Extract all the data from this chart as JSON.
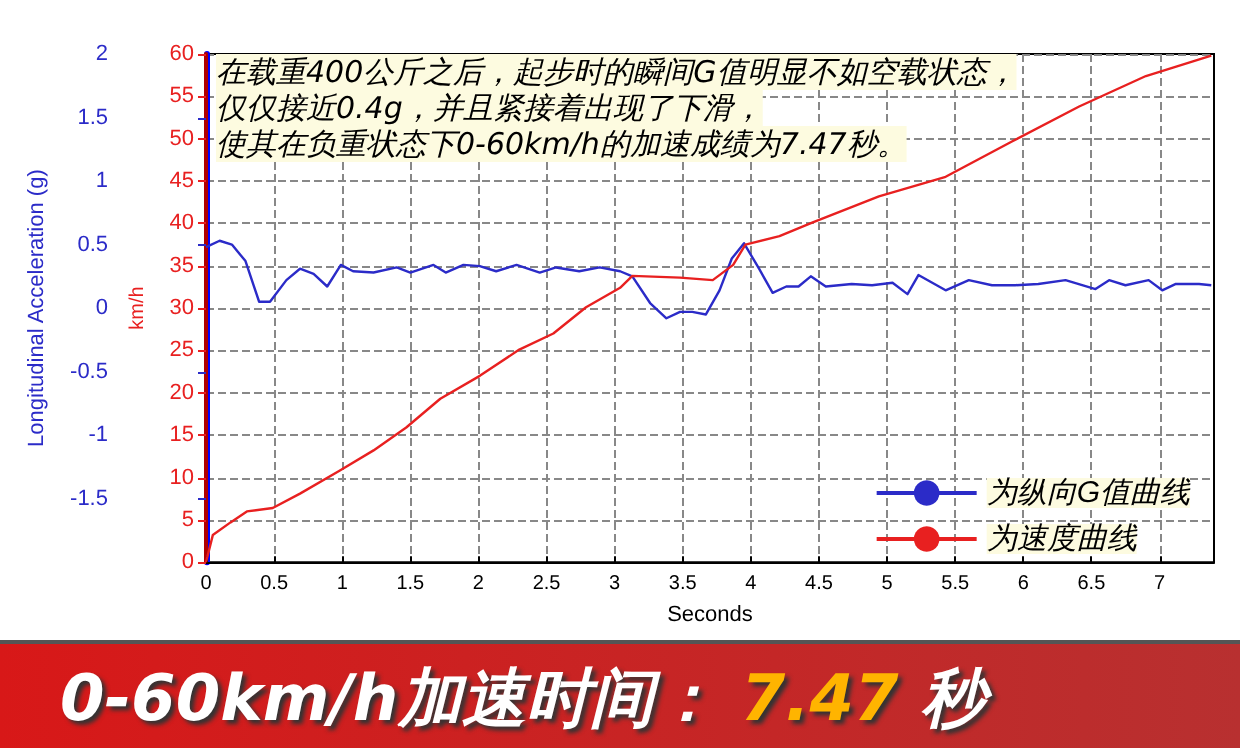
{
  "chart_data": {
    "type": "line",
    "title": "0-60km/h加速时间： 7.47 秒",
    "xlabel": "Seconds",
    "ylabel": "Longitudinal Acceleration (g)",
    "y2label": "km/h",
    "annotations": [
      "在载重400公斤之后，起步时的瞬间G值明显不如空载状态，",
      "仅仅接近0.4g，并且紧接着出现了下滑，",
      "使其在负重状态下0-60km/h的加速成绩为7.47秒。"
    ],
    "xlim": [
      0,
      7.4
    ],
    "xticks": [
      0,
      0.5,
      1,
      1.5,
      2,
      2.5,
      3,
      3.5,
      4,
      4.5,
      5,
      5.5,
      6,
      6.5,
      7
    ],
    "ylim": [
      -2,
      2
    ],
    "yticks": [
      -1.5,
      -1,
      -0.5,
      0,
      0.5,
      1,
      1.5,
      2
    ],
    "y2lim": [
      0,
      60
    ],
    "y2ticks": [
      0,
      5,
      10,
      15,
      20,
      25,
      30,
      35,
      40,
      45,
      50,
      55,
      60
    ],
    "grid": true,
    "legend": "bottom right",
    "marker": "none",
    "line_style": "solid",
    "series": [
      {
        "name": "为纵向G值曲线",
        "color": "#2b2bc8",
        "x": [
          0,
          0.1,
          0.19,
          0.29,
          0.39,
          0.47,
          0.59,
          0.69,
          0.79,
          0.89,
          0.99,
          1.08,
          1.23,
          1.4,
          1.5,
          1.67,
          1.76,
          1.89,
          2.01,
          2.13,
          2.28,
          2.45,
          2.57,
          2.74,
          2.89,
          3.04,
          3.13,
          3.26,
          3.38,
          3.48,
          3.57,
          3.67,
          3.77,
          3.86,
          3.95,
          4.06,
          4.16,
          4.26,
          4.35,
          4.44,
          4.55,
          4.74,
          4.89,
          5.04,
          5.15,
          5.23,
          5.43,
          5.6,
          5.77,
          5.94,
          6.11,
          6.31,
          6.53,
          6.63,
          6.75,
          6.92,
          7.02,
          7.12,
          7.29,
          7.38
        ],
        "values": [
          0.48,
          0.53,
          0.5,
          0.37,
          0.05,
          0.05,
          0.22,
          0.31,
          0.27,
          0.17,
          0.34,
          0.29,
          0.28,
          0.32,
          0.28,
          0.34,
          0.28,
          0.34,
          0.33,
          0.29,
          0.34,
          0.28,
          0.32,
          0.29,
          0.32,
          0.29,
          0.25,
          0.04,
          -0.08,
          -0.03,
          -0.03,
          -0.05,
          0.14,
          0.39,
          0.51,
          0.31,
          0.12,
          0.17,
          0.17,
          0.25,
          0.17,
          0.19,
          0.18,
          0.2,
          0.11,
          0.26,
          0.14,
          0.22,
          0.18,
          0.18,
          0.19,
          0.22,
          0.15,
          0.22,
          0.18,
          0.22,
          0.14,
          0.19,
          0.19,
          0.18
        ]
      },
      {
        "name": "为速度曲线",
        "color": "#e82020",
        "axis": "y2",
        "x": [
          0,
          0.05,
          0.18,
          0.3,
          0.49,
          0.69,
          0.98,
          1.23,
          1.47,
          1.72,
          2.01,
          2.3,
          2.55,
          2.79,
          3.04,
          3.13,
          3.48,
          3.72,
          3.87,
          3.96,
          4.21,
          4.45,
          4.94,
          5.43,
          5.92,
          6.41,
          6.9,
          7.38
        ],
        "values": [
          0,
          3.2,
          4.7,
          6,
          6.4,
          8.1,
          10.8,
          13.2,
          15.9,
          19.3,
          22,
          25.1,
          27,
          30.1,
          32.4,
          33.8,
          33.6,
          33.3,
          35.1,
          37.5,
          38.5,
          40.1,
          43.2,
          45.5,
          49.7,
          53.8,
          57.4,
          59.8
        ]
      }
    ]
  }
}
